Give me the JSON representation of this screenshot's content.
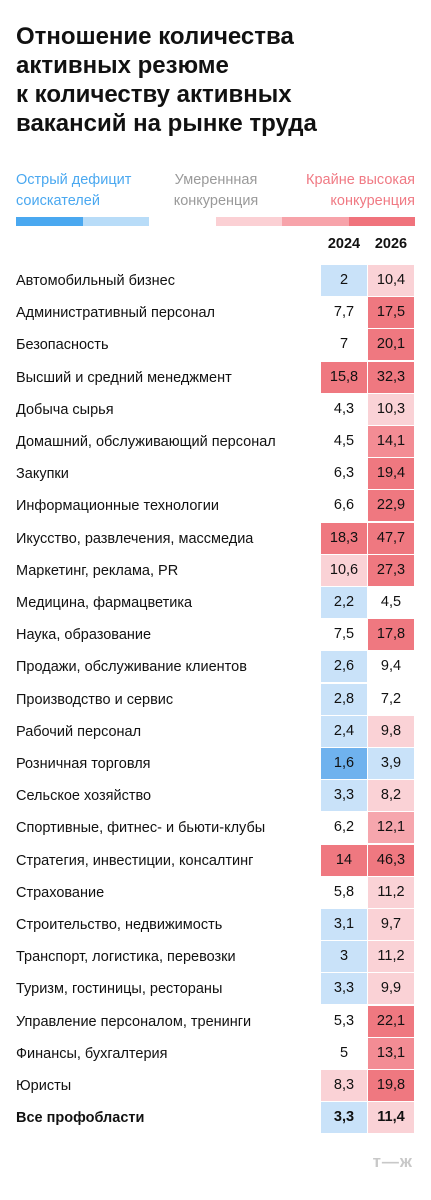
{
  "header": {
    "title": [
      "Отношение количества",
      "активных резюме",
      "к количеству активных",
      "вакансий на рынке труда"
    ]
  },
  "legend": {
    "items": [
      {
        "lines": [
          "Острый дефицит",
          "соискателей"
        ],
        "color": "#4aa8f0"
      },
      {
        "lines": [
          "Умереннная",
          "конкуренция"
        ],
        "color": "#9a9a9a"
      },
      {
        "lines": [
          "Крайне высокая",
          "конкуренция"
        ],
        "color": "#f07a84"
      }
    ],
    "bar": [
      "#4aa8f0",
      "#b8dcf8",
      "#ffffff",
      "#fbd0d4",
      "#f7a3aa",
      "#f0737c"
    ]
  },
  "table": {
    "columns": [
      "2024",
      "2026"
    ],
    "rows": [
      {
        "label": "Автомобильный бизнес",
        "cells": [
          "2",
          "10,4"
        ],
        "colors": [
          "#c9e2f9",
          "#fad2d6"
        ]
      },
      {
        "label": "Административный персонал",
        "cells": [
          "7,7",
          "17,5"
        ],
        "colors": [
          "#ffffff",
          "#ef7880"
        ]
      },
      {
        "label": "Безопасность",
        "cells": [
          "7",
          "20,1"
        ],
        "colors": [
          "#ffffff",
          "#ef7880"
        ]
      },
      {
        "label": "Высший и средний менеджмент",
        "cells": [
          "15,8",
          "32,3"
        ],
        "colors": [
          "#ef7880",
          "#ef7880"
        ]
      },
      {
        "label": "Добыча сырья",
        "cells": [
          "4,3",
          "10,3"
        ],
        "colors": [
          "#ffffff",
          "#fad2d6"
        ]
      },
      {
        "label": "Домашний, обслуживающий персонал",
        "cells": [
          "4,5",
          "14,1"
        ],
        "colors": [
          "#ffffff",
          "#f38c94"
        ]
      },
      {
        "label": "Закупки",
        "cells": [
          "6,3",
          "19,4"
        ],
        "colors": [
          "#ffffff",
          "#ef7880"
        ]
      },
      {
        "label": "Информационные технологии",
        "cells": [
          "6,6",
          "22,9"
        ],
        "colors": [
          "#ffffff",
          "#ef7880"
        ]
      },
      {
        "label": "Икусство, развлечения, массмедиа",
        "cells": [
          "18,3",
          "47,7"
        ],
        "colors": [
          "#ef7880",
          "#ef7880"
        ]
      },
      {
        "label": "Маркетинг, реклама, PR",
        "cells": [
          "10,6",
          "27,3"
        ],
        "colors": [
          "#fad2d6",
          "#ef7880"
        ]
      },
      {
        "label": "Медицина, фармацветика",
        "cells": [
          "2,2",
          "4,5"
        ],
        "colors": [
          "#c9e2f9",
          "#ffffff"
        ]
      },
      {
        "label": "Наука, образование",
        "cells": [
          "7,5",
          "17,8"
        ],
        "colors": [
          "#ffffff",
          "#ef7880"
        ]
      },
      {
        "label": "Продажи, обслуживание клиентов",
        "cells": [
          "2,6",
          "9,4"
        ],
        "colors": [
          "#c9e2f9",
          "#ffffff"
        ]
      },
      {
        "label": "Производство и сервис",
        "cells": [
          "2,8",
          "7,2"
        ],
        "colors": [
          "#c9e2f9",
          "#ffffff"
        ]
      },
      {
        "label": "Рабочий персонал",
        "cells": [
          "2,4",
          "9,8"
        ],
        "colors": [
          "#c9e2f9",
          "#fad2d6"
        ]
      },
      {
        "label": "Розничная торговля",
        "cells": [
          "1,6",
          "3,9"
        ],
        "colors": [
          "#6fb2ee",
          "#c9e2f9"
        ]
      },
      {
        "label": "Сельское хозяйство",
        "cells": [
          "3,3",
          "8,2"
        ],
        "colors": [
          "#c9e2f9",
          "#fad2d6"
        ]
      },
      {
        "label": "Спортивные, фитнес- и бьюти-клубы",
        "cells": [
          "6,2",
          "12,1"
        ],
        "colors": [
          "#ffffff",
          "#f6a6ad"
        ]
      },
      {
        "label": "Стратегия, инвестиции, консалтинг",
        "cells": [
          "14",
          "46,3"
        ],
        "colors": [
          "#ef7880",
          "#ef7880"
        ]
      },
      {
        "label": "Страхование",
        "cells": [
          "5,8",
          "11,2"
        ],
        "colors": [
          "#ffffff",
          "#fad2d6"
        ]
      },
      {
        "label": "Строительство, недвижимость",
        "cells": [
          "3,1",
          "9,7"
        ],
        "colors": [
          "#c9e2f9",
          "#fad2d6"
        ]
      },
      {
        "label": "Транспорт, логистика, перевозки",
        "cells": [
          "3",
          "11,2"
        ],
        "colors": [
          "#c9e2f9",
          "#fad2d6"
        ]
      },
      {
        "label": "Туризм, гостиницы, рестораны",
        "cells": [
          "3,3",
          "9,9"
        ],
        "colors": [
          "#c9e2f9",
          "#fad2d6"
        ]
      },
      {
        "label": "Управление персоналом, тренинги",
        "cells": [
          "5,3",
          "22,1"
        ],
        "colors": [
          "#ffffff",
          "#ef7880"
        ]
      },
      {
        "label": "Финансы, бухгалтерия",
        "cells": [
          "5",
          "13,1"
        ],
        "colors": [
          "#ffffff",
          "#f38c94"
        ]
      },
      {
        "label": "Юристы",
        "cells": [
          "8,3",
          "19,8"
        ],
        "colors": [
          "#fad2d6",
          "#ef7880"
        ]
      }
    ],
    "total": {
      "label": "Все профобласти",
      "cells": [
        "3,3",
        "11,4"
      ],
      "colors": [
        "#c9e2f9",
        "#fad2d6"
      ]
    }
  },
  "footer": {
    "logo": "т—ж"
  }
}
